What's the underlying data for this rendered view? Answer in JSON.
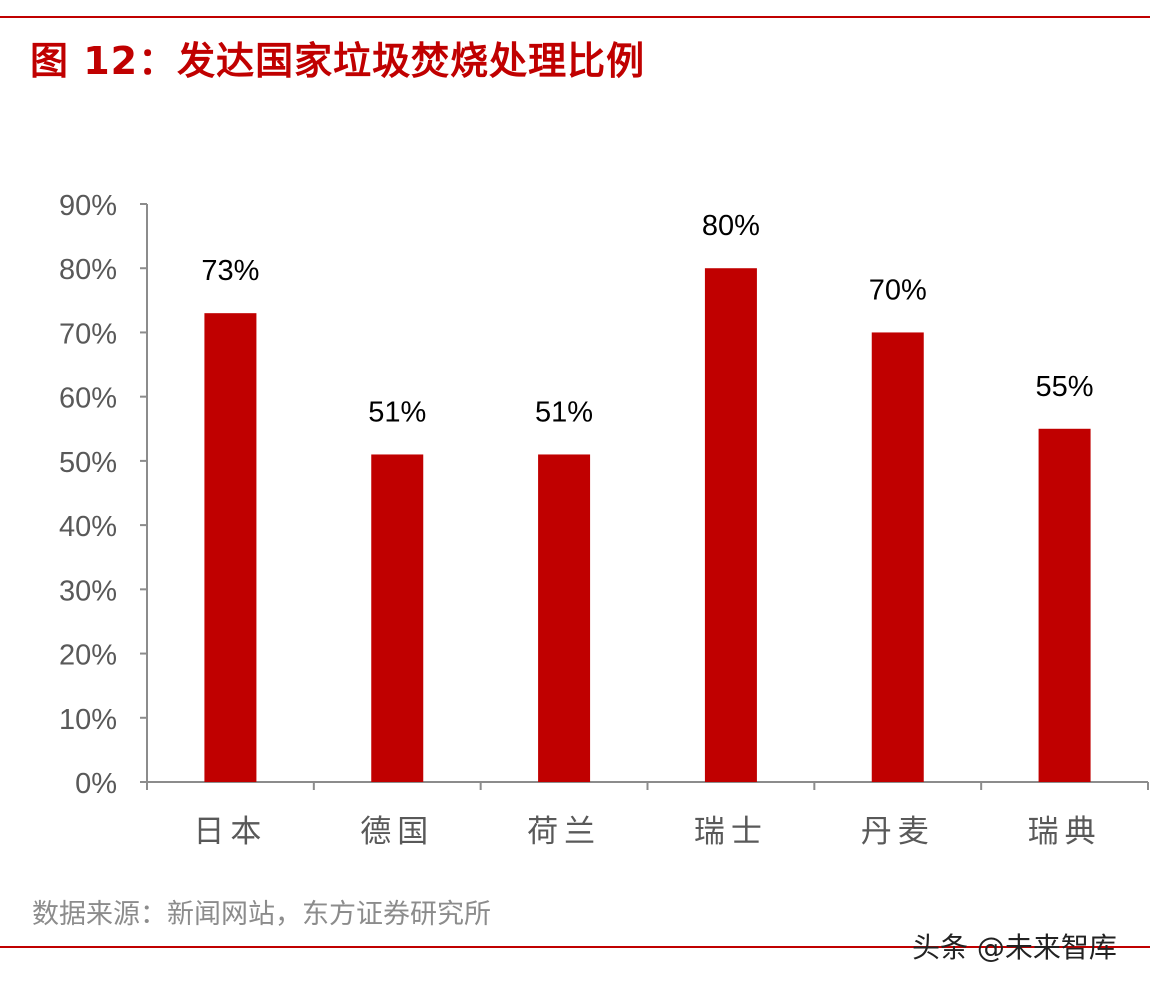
{
  "title": "图 12：发达国家垃圾焚烧处理比例",
  "source": "数据来源：新闻网站，东方证券研究所",
  "watermark": "头条 @未来智库",
  "colors": {
    "accent": "#c00000",
    "bar": "#c00000",
    "axis": "#8c8c8c",
    "tick_text": "#595959"
  },
  "chart_data": {
    "type": "bar",
    "categories": [
      "日本",
      "德国",
      "荷兰",
      "瑞士",
      "丹麦",
      "瑞典"
    ],
    "values": [
      73,
      51,
      51,
      80,
      70,
      55
    ],
    "data_labels": [
      "73%",
      "51%",
      "51%",
      "80%",
      "70%",
      "55%"
    ],
    "ylim": [
      0,
      90
    ],
    "yticks": [
      0,
      10,
      20,
      30,
      40,
      50,
      60,
      70,
      80,
      90
    ],
    "ytick_labels": [
      "0%",
      "10%",
      "20%",
      "30%",
      "40%",
      "50%",
      "60%",
      "70%",
      "80%",
      "90%"
    ],
    "xlabel": "",
    "ylabel": "",
    "grid": false,
    "legend": "none"
  }
}
